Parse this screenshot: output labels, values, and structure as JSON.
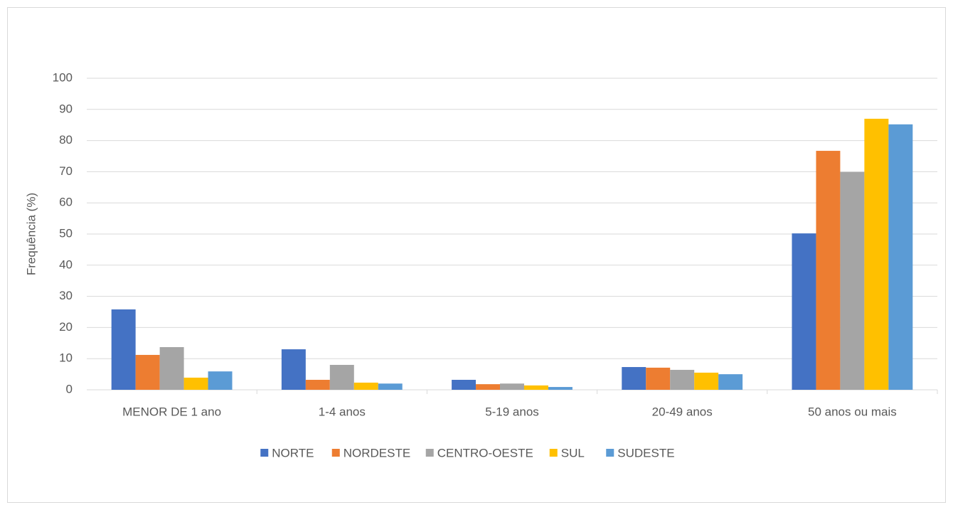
{
  "chart_data": {
    "type": "bar",
    "y_label": "Frequência (%)",
    "categories": [
      "MENOR DE 1 ano",
      "1-4 anos",
      "5-19 anos",
      "20-49 anos",
      "50 anos ou mais"
    ],
    "series": [
      {
        "name": "NORTE",
        "color": "#4472c4",
        "values": [
          25.8,
          13.0,
          3.2,
          7.3,
          50.2
        ]
      },
      {
        "name": "NORDESTE",
        "color": "#ed7d31",
        "values": [
          11.2,
          3.2,
          1.8,
          7.1,
          76.7
        ]
      },
      {
        "name": "CENTRO-OESTE",
        "color": "#a5a5a5",
        "values": [
          13.7,
          8.0,
          2.0,
          6.4,
          69.9
        ]
      },
      {
        "name": "SUL",
        "color": "#ffc000",
        "values": [
          3.9,
          2.3,
          1.4,
          5.5,
          87.0
        ]
      },
      {
        "name": "SUDESTE",
        "color": "#5b9bd5",
        "values": [
          5.9,
          2.0,
          0.9,
          5.0,
          85.2
        ]
      }
    ],
    "ylim": [
      0,
      100
    ],
    "yticks": [
      0,
      10,
      20,
      30,
      40,
      50,
      60,
      70,
      80,
      90,
      100
    ],
    "grid": true,
    "legend": "bottom"
  }
}
